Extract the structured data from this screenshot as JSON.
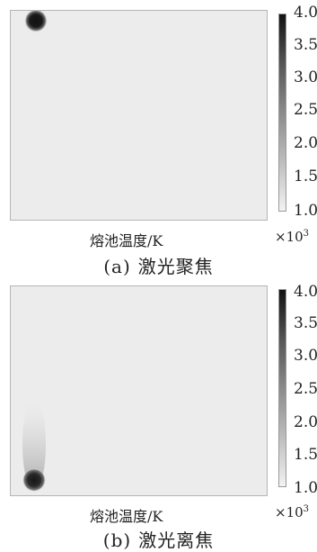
{
  "colorbar": {
    "ticks": [
      "4.0",
      "3.5",
      "3.0",
      "2.5",
      "2.0",
      "1.5",
      "1.0"
    ],
    "multiplier": "×10",
    "multiplier_exp": "3"
  },
  "chart_data": [
    {
      "type": "heatmap",
      "title": "",
      "colorbar_label": "熔池温度/K",
      "clim": [
        1.0,
        4.0
      ],
      "colorbar_scale": "×10^3",
      "hotspots": [
        {
          "peak": 4.0,
          "tail": "none"
        }
      ],
      "caption_tag": "(a)",
      "caption_text": "激光聚焦"
    },
    {
      "type": "heatmap",
      "title": "",
      "colorbar_label": "熔池温度/K",
      "clim": [
        1.0,
        4.0
      ],
      "colorbar_scale": "×10^3",
      "hotspots": [
        {
          "peak": 4.0,
          "tail": "upward"
        }
      ],
      "caption_tag": "(b)",
      "caption_text": "激光离焦"
    }
  ]
}
